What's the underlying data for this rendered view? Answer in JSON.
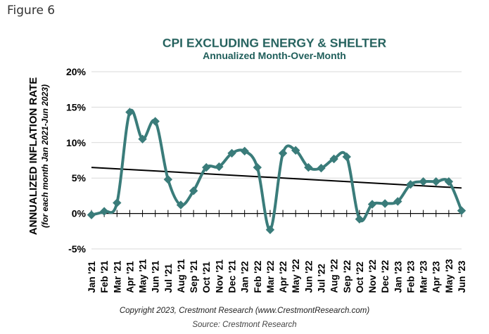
{
  "figure_label": "Figure 6",
  "footer": {
    "copyright": "Copyright 2023, Crestmont Research (www.CrestmontResearch.com)",
    "source": "Source: Crestmont Research"
  },
  "colors": {
    "series": "#3a7c7a",
    "trend": "#000000",
    "title": "#1f5e5a",
    "grid": "#d9d9d9"
  },
  "chart_data": {
    "type": "line",
    "title": "CPI EXCLUDING ENERGY & SHELTER",
    "subtitle": "Annualized Month-Over-Month",
    "ylabel": "ANNUALIZED INFLATION RATE",
    "ylabel_sub": "(for each month Jan 2021-Jun 2023)",
    "xlabel": "",
    "ylim": [
      -5,
      20
    ],
    "yticks": [
      -5,
      0,
      5,
      10,
      15,
      20
    ],
    "ytick_labels": [
      "-5%",
      "0%",
      "5%",
      "10%",
      "15%",
      "20%"
    ],
    "grid": true,
    "categories": [
      "Jan '21",
      "Feb '21",
      "Mar '21",
      "Apr '21",
      "May '21",
      "Jun '21",
      "Jul '21",
      "Aug '21",
      "Sep '21",
      "Oct '21",
      "Nov '21",
      "Dec '21",
      "Jan '22",
      "Feb '22",
      "Mar '22",
      "Apr '22",
      "May '22",
      "Jun '22",
      "Jul '22",
      "Aug '22",
      "Sep '22",
      "Oct '22",
      "Nov '22",
      "Dec '22",
      "Jan '23",
      "Feb '23",
      "Mar '23",
      "Apr '23",
      "May '23",
      "Jun '23"
    ],
    "series": [
      {
        "values": [
          -0.2,
          0.3,
          1.5,
          14.3,
          10.5,
          13.0,
          4.8,
          1.2,
          3.2,
          6.5,
          6.6,
          8.5,
          8.8,
          6.5,
          -2.3,
          8.5,
          8.9,
          6.5,
          6.4,
          7.7,
          8.0,
          -0.8,
          1.3,
          1.4,
          1.7,
          4.1,
          4.5,
          4.5,
          4.5,
          0.4
        ]
      }
    ],
    "trendline": {
      "start": 6.5,
      "end": 3.6
    }
  }
}
